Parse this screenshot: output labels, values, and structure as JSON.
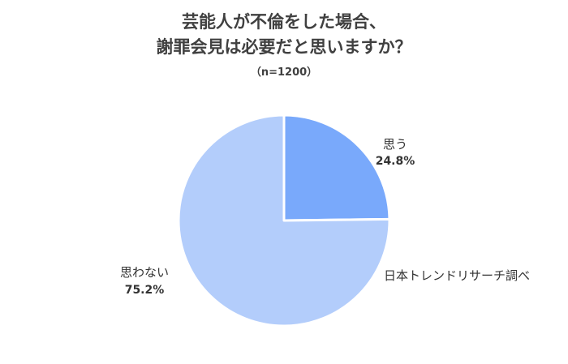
{
  "header": {
    "title_line1": "芸能人が不倫をした場合、",
    "title_line2": "謝罪会見は必要だと思いますか？",
    "subtitle": "（n=1200）"
  },
  "source": "日本トレンドリサーチ調べ",
  "colors": {
    "slice_yes": "#79a9fb",
    "slice_no": "#b3cdfb",
    "stroke": "#ffffff"
  },
  "chart_data": {
    "type": "pie",
    "title": "芸能人が不倫をした場合、謝罪会見は必要だと思いますか？",
    "subtitle": "（n=1200）",
    "slices": [
      {
        "name": "思う",
        "value": 24.8,
        "label": "24.8%"
      },
      {
        "name": "思わない",
        "value": 75.2,
        "label": "75.2%"
      }
    ]
  }
}
